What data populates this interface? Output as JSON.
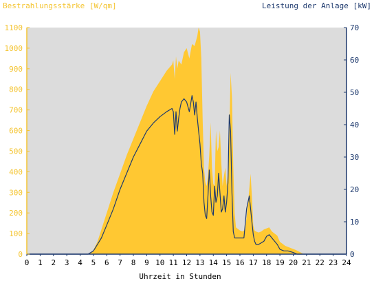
{
  "chart_data": {
    "type": "area",
    "left_title": "Bestrahlungsstärke [W/qm]",
    "right_title": "Leistung der Anlage [kW]",
    "xlabel": "Uhrzeit in Stunden",
    "x_ticks": [
      "0",
      "1",
      "2",
      "3",
      "4",
      "5",
      "6",
      "7",
      "8",
      "9",
      "10",
      "11",
      "12",
      "13",
      "14",
      "15",
      "16",
      "17",
      "18",
      "19",
      "20",
      "21",
      "22",
      "23",
      "24"
    ],
    "left_ticks": [
      "0",
      "100",
      "200",
      "300",
      "400",
      "500",
      "600",
      "700",
      "800",
      "900",
      "1000",
      "1100"
    ],
    "right_ticks": [
      "0",
      "10",
      "20",
      "30",
      "40",
      "50",
      "60",
      "70"
    ],
    "xlim": [
      0,
      24
    ],
    "ylim_left": [
      0,
      1100
    ],
    "ylim_right": [
      0,
      70
    ],
    "grid": false,
    "colors": {
      "irradiance": "#ffc832",
      "power": "#1e3a6e",
      "plot_bg": "#dcdcdc",
      "left_axis": "#f4c430",
      "right_axis": "#1e3a6e"
    },
    "series": [
      {
        "role": "irradiance",
        "x": [
          0,
          4.5,
          4.8,
          5.0,
          5.3,
          5.6,
          5.9,
          6.2,
          6.5,
          7.0,
          7.5,
          8.0,
          8.5,
          9.0,
          9.5,
          10.0,
          10.5,
          10.9,
          11.0,
          11.1,
          11.2,
          11.3,
          11.4,
          11.6,
          11.8,
          12.0,
          12.2,
          12.4,
          12.6,
          12.8,
          12.9,
          13.0,
          13.1,
          13.2,
          13.3,
          13.4,
          13.5,
          13.6,
          13.7,
          13.8,
          13.9,
          14.0,
          14.1,
          14.2,
          14.3,
          14.4,
          14.5,
          14.6,
          14.7,
          14.8,
          14.9,
          15.0,
          15.1,
          15.2,
          15.3,
          15.4,
          15.5,
          15.6,
          15.7,
          15.8,
          15.9,
          16.0,
          16.2,
          16.4,
          16.6,
          16.8,
          16.9,
          17.0,
          17.1,
          17.2,
          17.4,
          17.6,
          17.8,
          18.0,
          18.2,
          18.4,
          18.6,
          18.8,
          19.0,
          19.2,
          19.4,
          19.6,
          19.8,
          20.0,
          20.2,
          20.5,
          20.8,
          21.0,
          24.0
        ],
        "values": [
          0,
          0,
          5,
          20,
          60,
          120,
          180,
          240,
          300,
          390,
          480,
          560,
          640,
          720,
          790,
          840,
          890,
          920,
          940,
          850,
          960,
          900,
          940,
          920,
          980,
          1000,
          950,
          1020,
          1010,
          1060,
          1100,
          1080,
          950,
          650,
          420,
          350,
          330,
          380,
          480,
          640,
          420,
          340,
          330,
          600,
          500,
          520,
          600,
          440,
          330,
          380,
          420,
          330,
          400,
          550,
          880,
          760,
          430,
          200,
          130,
          125,
          120,
          115,
          110,
          120,
          240,
          390,
          280,
          140,
          115,
          110,
          105,
          110,
          120,
          125,
          130,
          110,
          100,
          90,
          60,
          50,
          40,
          35,
          30,
          25,
          20,
          10,
          0,
          0,
          0
        ]
      },
      {
        "role": "power",
        "x": [
          0,
          4.6,
          5.0,
          5.3,
          5.6,
          6.0,
          6.5,
          7.0,
          7.5,
          8.0,
          8.5,
          9.0,
          9.5,
          10.0,
          10.5,
          10.9,
          11.0,
          11.1,
          11.2,
          11.3,
          11.4,
          11.5,
          11.6,
          11.8,
          12.0,
          12.2,
          12.4,
          12.5,
          12.6,
          12.7,
          12.8,
          12.9,
          13.0,
          13.1,
          13.2,
          13.3,
          13.4,
          13.5,
          13.6,
          13.7,
          13.8,
          13.9,
          14.0,
          14.1,
          14.2,
          14.3,
          14.4,
          14.5,
          14.6,
          14.7,
          14.8,
          14.9,
          15.0,
          15.1,
          15.2,
          15.3,
          15.4,
          15.5,
          15.6,
          15.7,
          15.8,
          15.9,
          16.0,
          16.3,
          16.5,
          16.7,
          16.9,
          17.0,
          17.1,
          17.2,
          17.4,
          17.6,
          17.8,
          18.0,
          18.2,
          18.4,
          18.6,
          18.8,
          19.0,
          19.3,
          19.6,
          20.0,
          20.3,
          20.6,
          21.0,
          24.0
        ],
        "values": [
          0,
          0,
          1,
          3,
          5,
          9,
          14,
          20,
          25,
          30,
          34,
          38,
          40.5,
          42.5,
          44,
          45,
          44,
          37,
          44,
          38,
          42,
          45,
          47,
          48,
          47,
          44,
          49,
          47,
          43,
          47,
          42,
          38,
          34,
          28,
          25,
          16,
          12,
          11,
          18,
          26,
          18,
          13,
          12,
          21,
          16,
          18,
          25,
          19,
          13,
          14,
          18,
          13,
          16,
          22,
          43,
          38,
          19,
          7,
          5,
          5,
          5,
          5,
          5,
          5,
          14,
          18,
          10,
          6,
          4,
          3,
          3,
          3.5,
          4,
          5.5,
          6,
          5,
          4,
          3,
          1.5,
          1,
          1,
          0.5,
          0,
          0,
          0,
          0
        ]
      }
    ]
  }
}
